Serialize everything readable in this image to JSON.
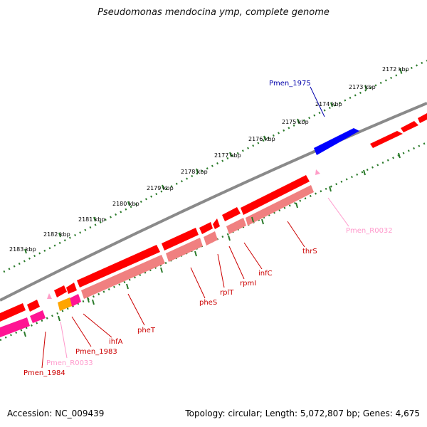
{
  "title": "Pseudomonas mendocina ymp, complete genome",
  "footer": {
    "accession": "Accession: NC_009439",
    "summary": "Topology: circular; Length: 5,072,807 bp; Genes: 4,675"
  },
  "colors": {
    "backbone": "#8a8a8a",
    "ruler_ticks": "#2a7a2a",
    "gene_red": "#ff0000",
    "gene_red_light": "#f08080",
    "gene_blue": "#0000ff",
    "gene_pink": "#ff1493",
    "gene_orange": "#ffa500",
    "rna_light_pink": "#ff9ec8",
    "label_red": "#cc0000",
    "label_blue": "#0000aa",
    "label_pink": "#ff99cc"
  },
  "kbp_labels": [
    "2172 kbp",
    "2173 kbp",
    "2174 kbp",
    "2175 kbp",
    "2176 kbp",
    "2177 kbp",
    "2178 kbp",
    "2179 kbp",
    "2180 kbp",
    "2181 kbp",
    "2182 kbp",
    "2183 kbp"
  ],
  "gene_labels": [
    {
      "name": "Pmen_1975",
      "color": "blue"
    },
    {
      "name": "Pmen_R0032",
      "color": "pink"
    },
    {
      "name": "thrS",
      "color": "red"
    },
    {
      "name": "infC",
      "color": "red"
    },
    {
      "name": "rpmI",
      "color": "red"
    },
    {
      "name": "rplT",
      "color": "red"
    },
    {
      "name": "pheS",
      "color": "red"
    },
    {
      "name": "pheT",
      "color": "red"
    },
    {
      "name": "ihfA",
      "color": "red"
    },
    {
      "name": "Pmen_1983",
      "color": "red"
    },
    {
      "name": "Pmen_R0033",
      "color": "pink"
    },
    {
      "name": "Pmen_1984",
      "color": "red"
    }
  ]
}
